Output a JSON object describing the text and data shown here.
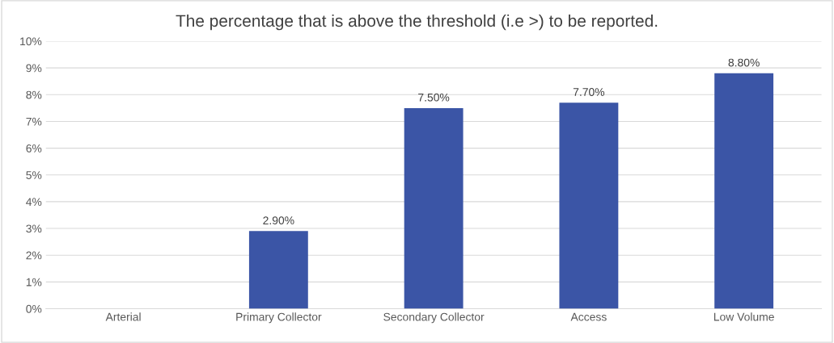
{
  "chart_data": {
    "type": "bar",
    "title": "The percentage that is above the threshold (i.e >) to be reported.",
    "categories": [
      "Arterial",
      "Primary Collector",
      "Secondary Collector",
      "Access",
      "Low Volume"
    ],
    "values": [
      0,
      2.9,
      7.5,
      7.7,
      8.8
    ],
    "value_labels": [
      null,
      "2.90%",
      "7.50%",
      "7.70%",
      "8.80%"
    ],
    "color": "#3b55a6",
    "ylim": [
      0,
      10
    ],
    "yticks": [
      {
        "value": 0,
        "label": "0%"
      },
      {
        "value": 1,
        "label": "1%"
      },
      {
        "value": 2,
        "label": "2%"
      },
      {
        "value": 3,
        "label": "3%"
      },
      {
        "value": 4,
        "label": "4%"
      },
      {
        "value": 5,
        "label": "5%"
      },
      {
        "value": 6,
        "label": "6%"
      },
      {
        "value": 7,
        "label": "7%"
      },
      {
        "value": 8,
        "label": "8%"
      },
      {
        "value": 9,
        "label": "9%"
      },
      {
        "value": 10,
        "label": "10%"
      }
    ],
    "grid": "y"
  }
}
